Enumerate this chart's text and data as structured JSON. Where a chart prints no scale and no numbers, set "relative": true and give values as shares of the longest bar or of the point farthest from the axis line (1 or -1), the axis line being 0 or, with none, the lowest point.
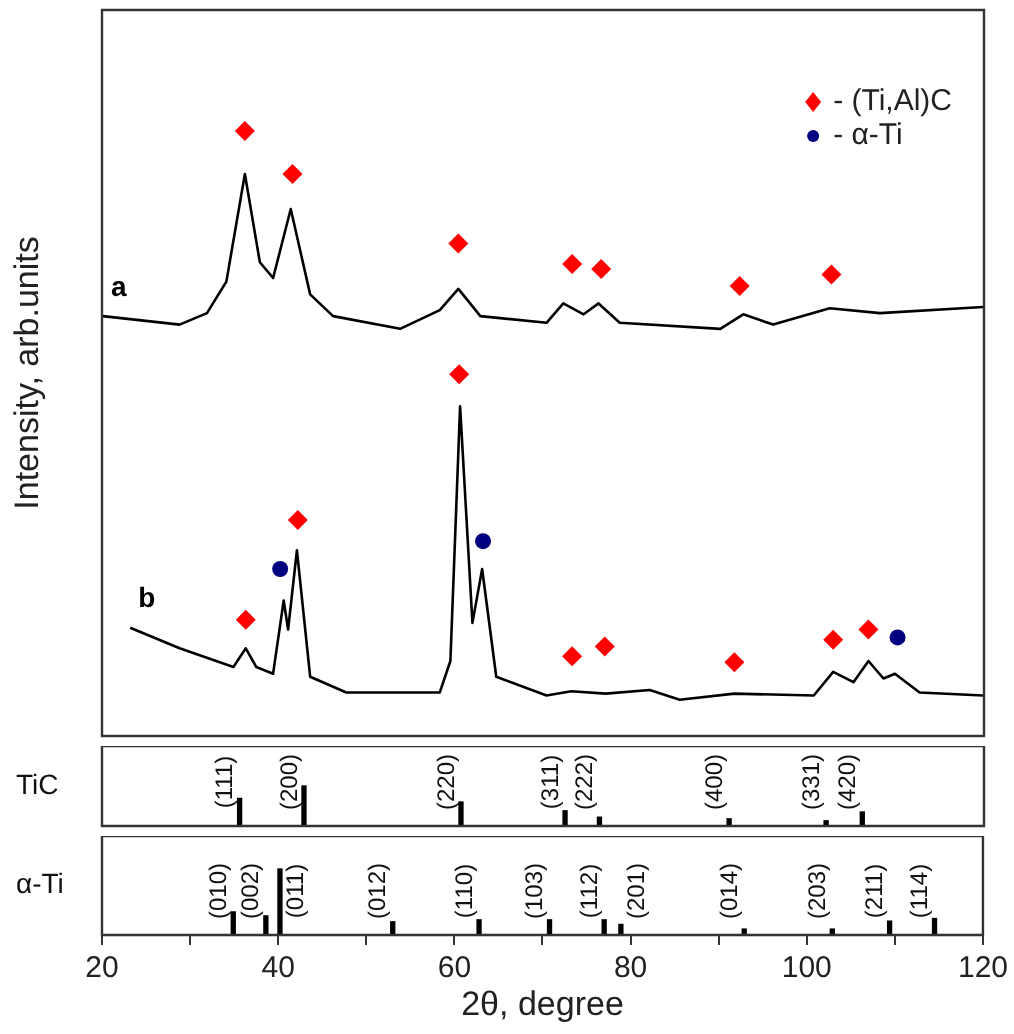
{
  "chart_data": [
    {
      "type": "line",
      "relative": true,
      "ylabel": "Intensity, arb.units",
      "xlim": [
        20,
        120
      ],
      "tick_labels": false,
      "legend": "top right",
      "series": [
        {
          "name": "a",
          "color": "#000000",
          "marker": "none",
          "x": [
            20.1,
            28.8,
            31.9,
            34.1,
            36.2,
            37.9,
            39.4,
            41.4,
            43.6,
            46.2,
            53.8,
            58.3,
            60.4,
            62.9,
            70.4,
            72.3,
            74.6,
            76.3,
            78.7,
            90.1,
            92.7,
            96.1,
            102.5,
            108.2,
            119.9
          ],
          "values": [
            0.694,
            0.68,
            0.699,
            0.751,
            0.929,
            0.783,
            0.757,
            0.871,
            0.73,
            0.694,
            0.673,
            0.704,
            0.739,
            0.694,
            0.683,
            0.715,
            0.697,
            0.715,
            0.683,
            0.673,
            0.697,
            0.68,
            0.707,
            0.699,
            0.709
          ]
        },
        {
          "name": "b",
          "color": "#000000",
          "marker": "none",
          "x": [
            23.2,
            28.8,
            34.9,
            36.3,
            37.5,
            39.4,
            40.6,
            41.1,
            42.1,
            43.6,
            47.7,
            58.3,
            59.5,
            60.6,
            62.0,
            63.1,
            64.7,
            70.4,
            73.2,
            77.1,
            82.1,
            85.5,
            91.7,
            100.7,
            102.9,
            105.2,
            106.9,
            108.6,
            109.9,
            112.7,
            119.9
          ],
          "values": [
            0.179,
            0.145,
            0.114,
            0.145,
            0.114,
            0.103,
            0.224,
            0.176,
            0.307,
            0.098,
            0.072,
            0.072,
            0.124,
            0.545,
            0.187,
            0.276,
            0.098,
            0.067,
            0.074,
            0.07,
            0.076,
            0.06,
            0.07,
            0.067,
            0.106,
            0.089,
            0.124,
            0.095,
            0.103,
            0.072,
            0.067
          ]
        },
        {
          "name": "- (Ti,Al)C",
          "type": "scatter",
          "color": "#ff0000",
          "marker": "diamond",
          "x": [
            36.2,
            41.6,
            60.4,
            73.3,
            76.6,
            92.3,
            102.7,
            36.3,
            42.2,
            60.5,
            73.3,
            77.0,
            91.7,
            102.9,
            106.9
          ],
          "values": [
            1.0,
            0.929,
            0.814,
            0.78,
            0.772,
            0.744,
            0.763,
            0.192,
            0.357,
            0.598,
            0.132,
            0.148,
            0.122,
            0.159,
            0.176
          ]
        },
        {
          "name": "- α-Ti",
          "type": "scatter",
          "color": "#000080",
          "marker": "circle",
          "x": [
            40.2,
            63.2,
            110.2
          ],
          "values": [
            0.276,
            0.322,
            0.163
          ]
        }
      ]
    },
    {
      "type": "bar",
      "relative": true,
      "ylabel": "TiC",
      "xlim": [
        20,
        120
      ],
      "tick_labels": false,
      "color": "#000000",
      "x": [
        35.6,
        42.9,
        60.7,
        72.5,
        76.4,
        91.1,
        102.1,
        106.2
      ],
      "values": [
        0.69,
        1.0,
        0.6,
        0.38,
        0.22,
        0.18,
        0.13,
        0.35
      ],
      "annotations": [
        "(111)",
        "(200)",
        "(220)",
        "(311)",
        "(222)",
        "(400)",
        "(331)",
        "(420)"
      ]
    },
    {
      "type": "bar",
      "relative": true,
      "ylabel": "α-Ti",
      "xlabel": "2θ, degree",
      "xlim": [
        20,
        120
      ],
      "xticks": [
        20,
        {
          "value": 30,
          "label": null
        },
        40,
        {
          "value": 50,
          "label": null
        },
        60,
        {
          "value": 70,
          "label": null
        },
        80,
        {
          "value": 90,
          "label": null
        },
        100,
        {
          "value": 110,
          "label": null
        },
        120
      ],
      "tick_labels": "x",
      "color": "#000000",
      "x": [
        34.9,
        38.6,
        40.2,
        53.0,
        62.8,
        70.8,
        77.0,
        78.9,
        92.9,
        102.9,
        109.4,
        114.5
      ],
      "values": [
        0.35,
        0.29,
        1.0,
        0.2,
        0.23,
        0.23,
        0.23,
        0.16,
        0.09,
        0.09,
        0.21,
        0.25
      ],
      "annotations": [
        "(010)",
        "(002)",
        "(011)",
        "(012)",
        "(110)",
        "(103)",
        "(112)",
        "(201)",
        "(014)",
        "(203)",
        "(211)",
        "(114)"
      ]
    }
  ]
}
